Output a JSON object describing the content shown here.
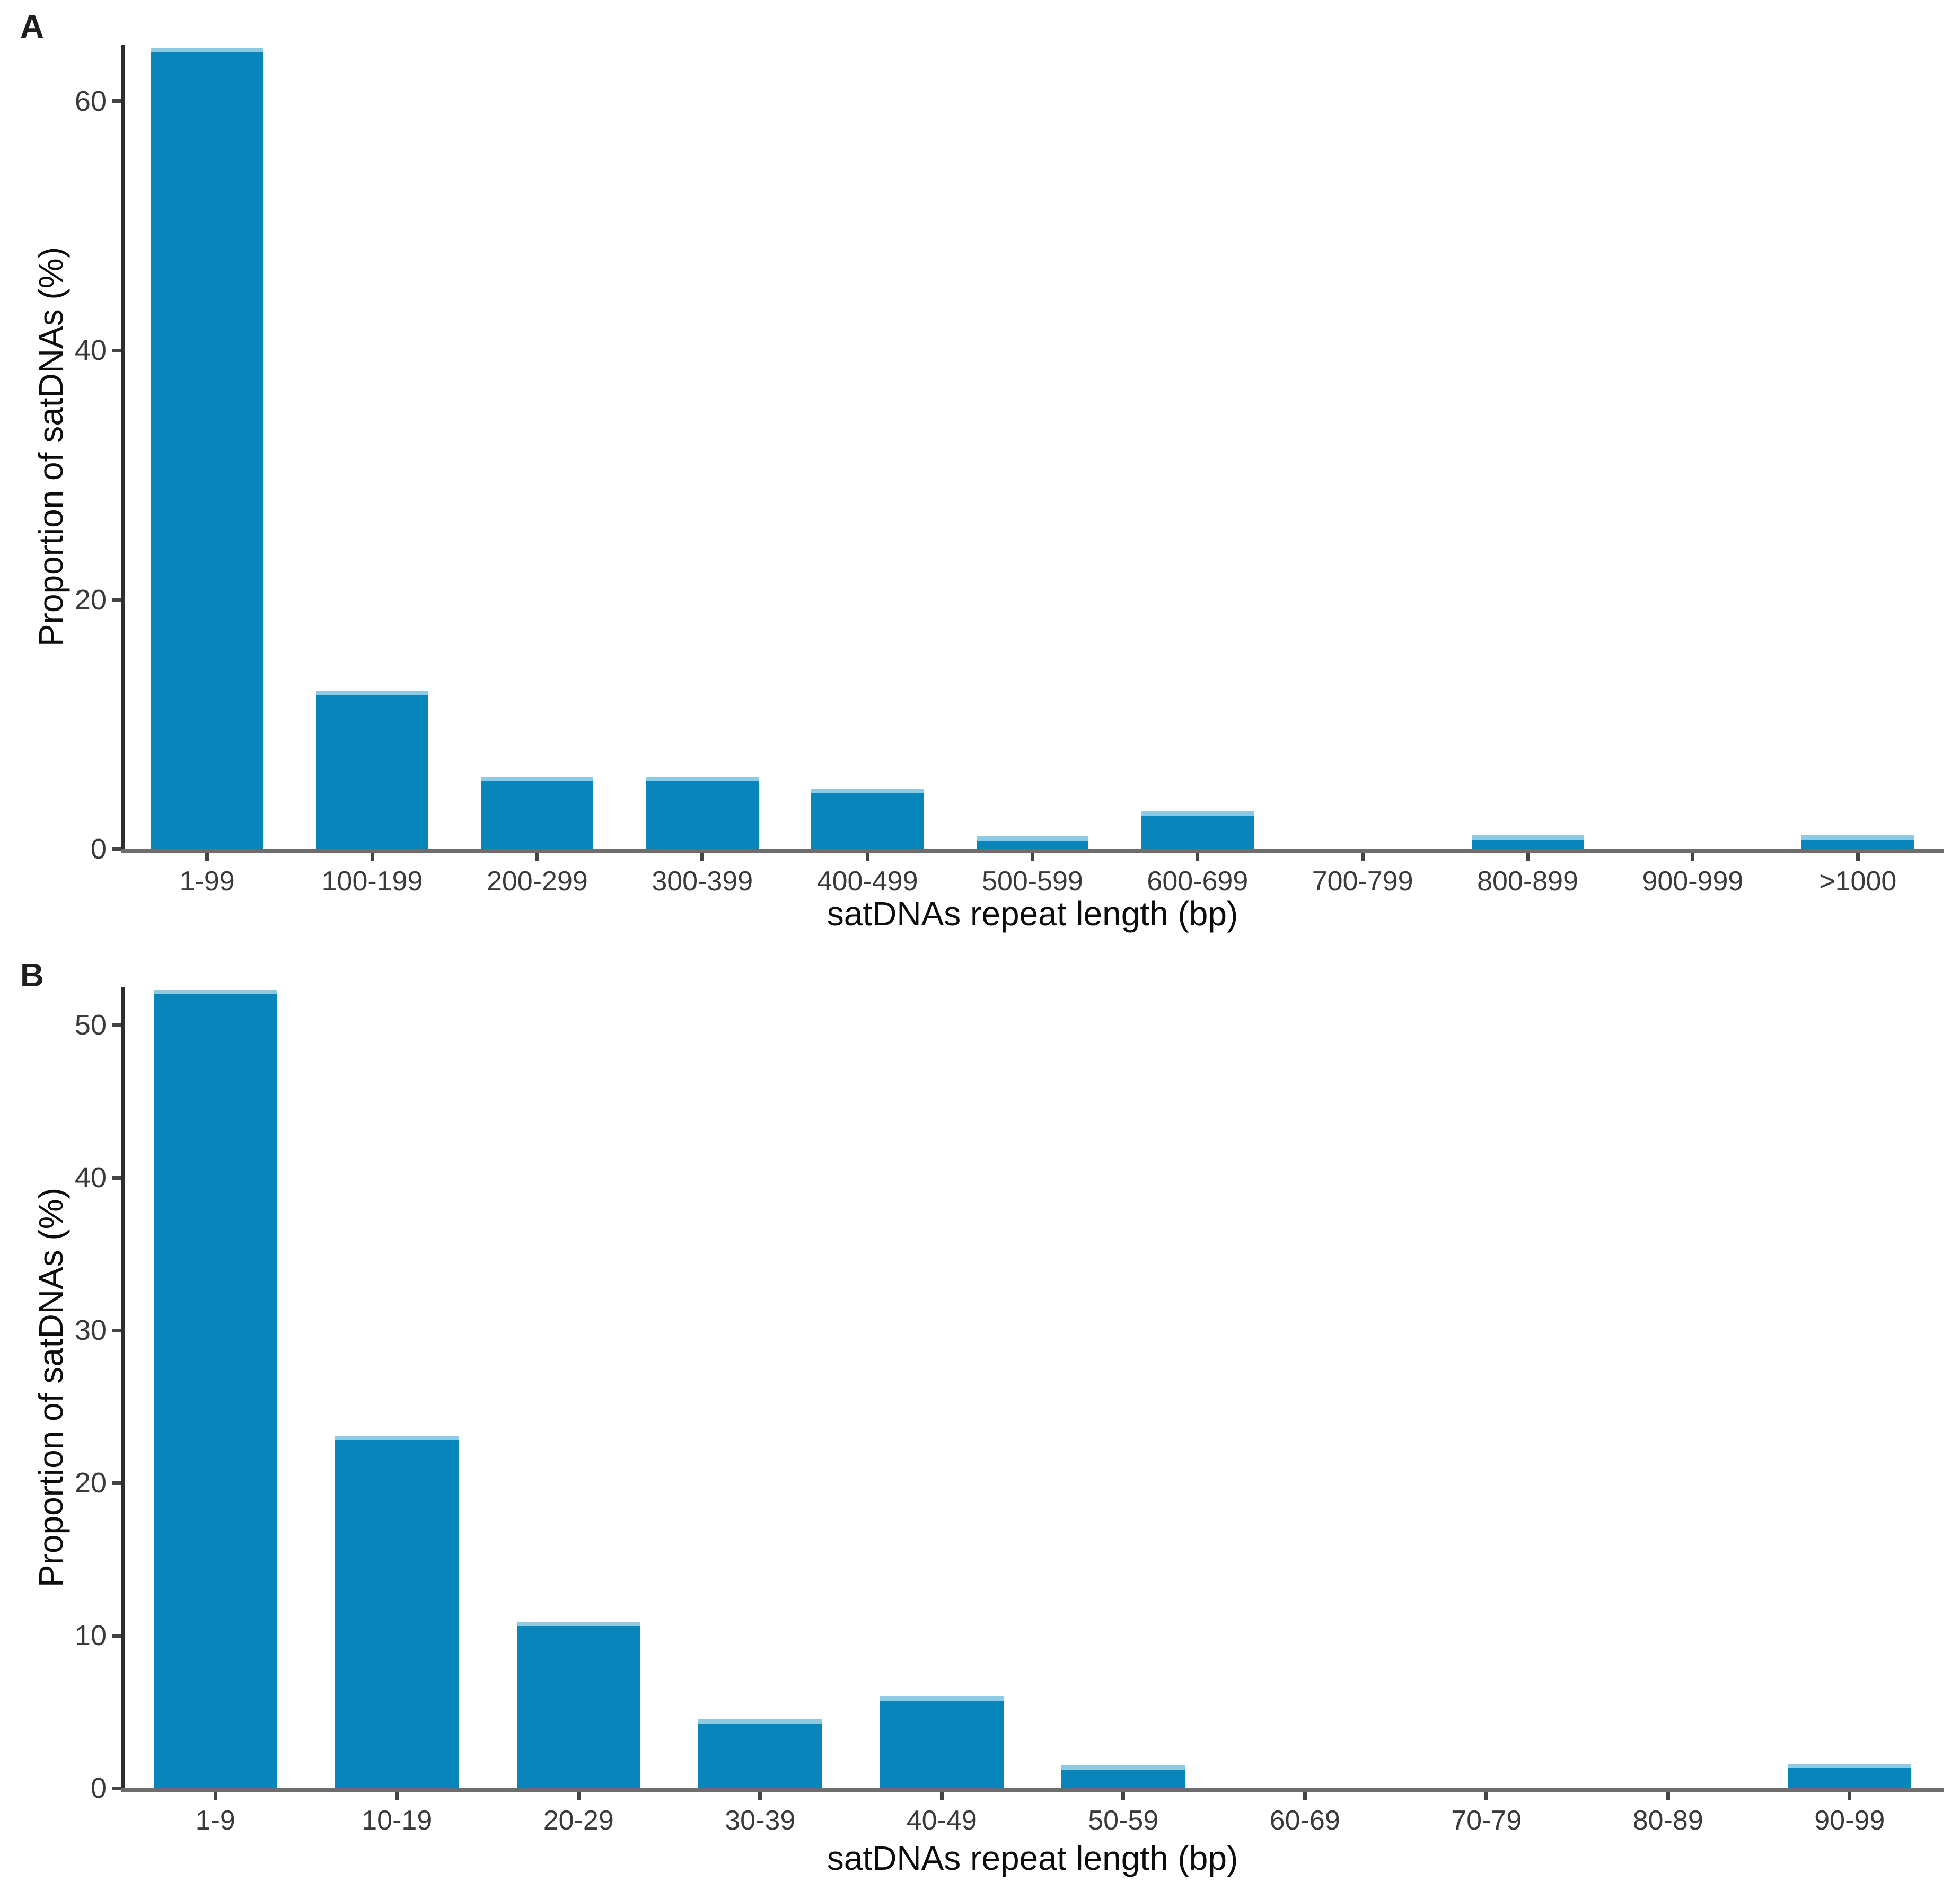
{
  "figure": {
    "bar_color": "#0886bc",
    "bar_top_edge_color": "#8ccbe3",
    "y_axis_color": "#2e2e2e",
    "x_axis_color": "#6d6d6d",
    "tick_color": "#444444",
    "tick_label_color": "#3a3a3a",
    "axis_title_color": "#0d0d0d"
  },
  "chart_data": [
    {
      "type": "bar",
      "panel": "A",
      "categories": [
        "1-99",
        "100-199",
        "200-299",
        "300-399",
        "400-499",
        "500-599",
        "600-699",
        "700-799",
        "800-899",
        "900-999",
        ">1000"
      ],
      "values": [
        64.3,
        12.7,
        5.8,
        5.8,
        4.8,
        1.0,
        3.0,
        0,
        1.1,
        0,
        1.1
      ],
      "xlabel": "satDNAs repeat length (bp)",
      "ylabel": "Proportion of satDNAs (%)",
      "yticks": [
        0,
        20,
        40,
        60
      ],
      "ylim": [
        0,
        64.5
      ],
      "grid": false,
      "legend": "none"
    },
    {
      "type": "bar",
      "panel": "B",
      "categories": [
        "1-9",
        "10-19",
        "20-29",
        "30-39",
        "40-49",
        "50-59",
        "60-69",
        "70-79",
        "80-89",
        "90-99"
      ],
      "values": [
        52.3,
        23.1,
        10.9,
        4.5,
        6.0,
        1.5,
        0,
        0,
        0,
        1.6
      ],
      "xlabel": "satDNAs repeat length (bp)",
      "ylabel": "Proportion of satDNAs (%)",
      "yticks": [
        0,
        10,
        20,
        30,
        40,
        50
      ],
      "ylim": [
        0,
        52.5
      ],
      "grid": false,
      "legend": "none"
    }
  ]
}
